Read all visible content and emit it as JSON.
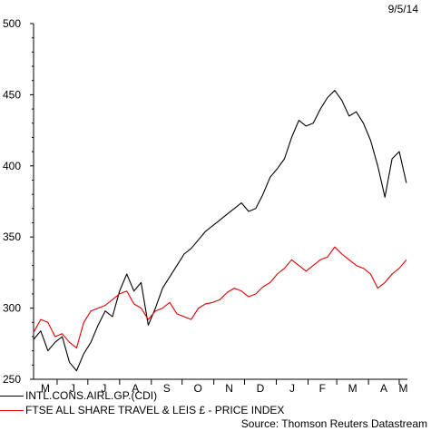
{
  "date_label": "9/5/14",
  "source": "Source: Thomson Reuters Datastream",
  "chart_data": {
    "type": "line",
    "title": "",
    "xlabel": "",
    "ylabel": "",
    "ylim": [
      250,
      500
    ],
    "yticks": [
      250,
      300,
      350,
      400,
      450,
      500
    ],
    "xlim": [
      "2013-05-09",
      "2014-05-09"
    ],
    "month_labels": [
      "M",
      "J",
      "J",
      "A",
      "S",
      "O",
      "N",
      "D",
      "J",
      "F",
      "M",
      "A",
      "M"
    ],
    "grid": false,
    "legend_position": "bottom",
    "series": [
      {
        "name": "INTL.CONS.AIRL.GP.(CDI)",
        "color": "#000000",
        "points": [
          [
            "2013-05-09",
            278
          ],
          [
            "2013-05-16",
            284
          ],
          [
            "2013-05-23",
            270
          ],
          [
            "2013-05-30",
            276
          ],
          [
            "2013-06-06",
            280
          ],
          [
            "2013-06-13",
            262
          ],
          [
            "2013-06-20",
            256
          ],
          [
            "2013-06-27",
            268
          ],
          [
            "2013-07-04",
            276
          ],
          [
            "2013-07-11",
            288
          ],
          [
            "2013-07-18",
            298
          ],
          [
            "2013-07-25",
            294
          ],
          [
            "2013-08-01",
            312
          ],
          [
            "2013-08-08",
            324
          ],
          [
            "2013-08-15",
            312
          ],
          [
            "2013-08-22",
            318
          ],
          [
            "2013-08-29",
            288
          ],
          [
            "2013-09-05",
            300
          ],
          [
            "2013-09-12",
            314
          ],
          [
            "2013-09-19",
            322
          ],
          [
            "2013-09-26",
            330
          ],
          [
            "2013-10-03",
            338
          ],
          [
            "2013-10-10",
            342
          ],
          [
            "2013-10-17",
            348
          ],
          [
            "2013-10-24",
            354
          ],
          [
            "2013-10-31",
            358
          ],
          [
            "2013-11-07",
            362
          ],
          [
            "2013-11-14",
            366
          ],
          [
            "2013-11-21",
            370
          ],
          [
            "2013-11-28",
            374
          ],
          [
            "2013-12-05",
            368
          ],
          [
            "2013-12-12",
            370
          ],
          [
            "2013-12-19",
            380
          ],
          [
            "2013-12-26",
            392
          ],
          [
            "2014-01-02",
            398
          ],
          [
            "2014-01-09",
            405
          ],
          [
            "2014-01-16",
            420
          ],
          [
            "2014-01-23",
            432
          ],
          [
            "2014-01-30",
            428
          ],
          [
            "2014-02-06",
            430
          ],
          [
            "2014-02-13",
            440
          ],
          [
            "2014-02-20",
            448
          ],
          [
            "2014-02-27",
            453
          ],
          [
            "2014-03-06",
            446
          ],
          [
            "2014-03-13",
            435
          ],
          [
            "2014-03-20",
            438
          ],
          [
            "2014-03-27",
            430
          ],
          [
            "2014-04-03",
            418
          ],
          [
            "2014-04-10",
            400
          ],
          [
            "2014-04-17",
            378
          ],
          [
            "2014-04-24",
            405
          ],
          [
            "2014-05-01",
            410
          ],
          [
            "2014-05-08",
            388
          ]
        ]
      },
      {
        "name": "FTSE ALL SHARE TRAVEL & LEIS £ - PRICE INDEX",
        "color": "#e00000",
        "points": [
          [
            "2013-05-09",
            283
          ],
          [
            "2013-05-16",
            292
          ],
          [
            "2013-05-23",
            290
          ],
          [
            "2013-05-30",
            280
          ],
          [
            "2013-06-06",
            282
          ],
          [
            "2013-06-13",
            276
          ],
          [
            "2013-06-20",
            272
          ],
          [
            "2013-06-27",
            290
          ],
          [
            "2013-07-04",
            298
          ],
          [
            "2013-07-11",
            300
          ],
          [
            "2013-07-18",
            302
          ],
          [
            "2013-07-25",
            306
          ],
          [
            "2013-08-01",
            310
          ],
          [
            "2013-08-08",
            312
          ],
          [
            "2013-08-15",
            303
          ],
          [
            "2013-08-22",
            300
          ],
          [
            "2013-08-29",
            292
          ],
          [
            "2013-09-05",
            298
          ],
          [
            "2013-09-12",
            300
          ],
          [
            "2013-09-19",
            304
          ],
          [
            "2013-09-26",
            296
          ],
          [
            "2013-10-03",
            294
          ],
          [
            "2013-10-10",
            292
          ],
          [
            "2013-10-17",
            300
          ],
          [
            "2013-10-24",
            303
          ],
          [
            "2013-10-31",
            304
          ],
          [
            "2013-11-07",
            306
          ],
          [
            "2013-11-14",
            311
          ],
          [
            "2013-11-21",
            314
          ],
          [
            "2013-11-28",
            312
          ],
          [
            "2013-12-05",
            308
          ],
          [
            "2013-12-12",
            310
          ],
          [
            "2013-12-19",
            315
          ],
          [
            "2013-12-26",
            318
          ],
          [
            "2014-01-02",
            324
          ],
          [
            "2014-01-09",
            328
          ],
          [
            "2014-01-16",
            334
          ],
          [
            "2014-01-23",
            330
          ],
          [
            "2014-01-30",
            326
          ],
          [
            "2014-02-06",
            330
          ],
          [
            "2014-02-13",
            334
          ],
          [
            "2014-02-20",
            336
          ],
          [
            "2014-02-27",
            343
          ],
          [
            "2014-03-06",
            338
          ],
          [
            "2014-03-13",
            334
          ],
          [
            "2014-03-20",
            330
          ],
          [
            "2014-03-27",
            328
          ],
          [
            "2014-04-03",
            324
          ],
          [
            "2014-04-10",
            314
          ],
          [
            "2014-04-17",
            318
          ],
          [
            "2014-04-24",
            324
          ],
          [
            "2014-05-01",
            328
          ],
          [
            "2014-05-08",
            334
          ]
        ]
      }
    ]
  }
}
